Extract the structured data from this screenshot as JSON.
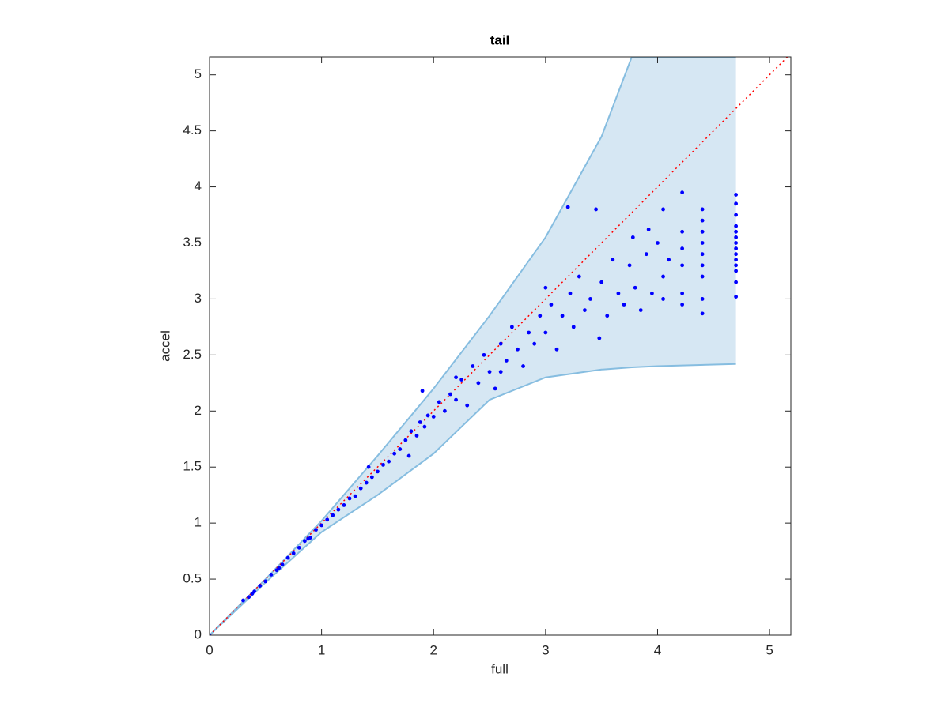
{
  "chart_data": {
    "type": "scatter",
    "title": "tail",
    "xlabel": "full",
    "ylabel": "accel",
    "xlim": [
      0,
      5.19
    ],
    "ylim": [
      0,
      5.16
    ],
    "xticks": [
      0,
      1,
      2,
      3,
      4,
      5
    ],
    "yticks": [
      0,
      0.5,
      1,
      1.5,
      2,
      2.5,
      3,
      3.5,
      4,
      4.5,
      5
    ],
    "band": {
      "x": [
        0,
        0.5,
        1,
        1.5,
        2,
        2.5,
        3,
        3.5,
        3.77,
        4,
        4.7
      ],
      "upper": [
        0,
        0.5,
        1.02,
        1.6,
        2.2,
        2.85,
        3.55,
        4.45,
        5.16,
        5.16,
        5.16
      ],
      "lower": [
        0,
        0.47,
        0.92,
        1.25,
        1.62,
        2.1,
        2.3,
        2.37,
        2.39,
        2.4,
        2.42
      ],
      "color": "#d6e7f3",
      "edge_color": "#86bde0"
    },
    "reference_line": {
      "x": [
        0,
        5.19
      ],
      "y": [
        0,
        5.19
      ],
      "color": "#ff0000"
    },
    "points": {
      "color": "#0000ff",
      "x": [
        0,
        0.3,
        0.35,
        0.38,
        0.4,
        0.45,
        0.5,
        0.55,
        0.6,
        0.62,
        0.65,
        0.7,
        0.75,
        0.8,
        0.85,
        0.88,
        0.9,
        0.95,
        1.0,
        1.05,
        1.1,
        1.15,
        1.2,
        1.25,
        1.3,
        1.35,
        1.4,
        1.42,
        1.45,
        1.5,
        1.55,
        1.6,
        1.65,
        1.7,
        1.75,
        1.78,
        1.8,
        1.85,
        1.88,
        1.9,
        1.92,
        1.95,
        2.0,
        2.05,
        2.1,
        2.15,
        2.2,
        2.2,
        2.25,
        2.3,
        2.35,
        2.4,
        2.45,
        2.5,
        2.55,
        2.6,
        2.6,
        2.65,
        2.7,
        2.75,
        2.8,
        2.85,
        2.9,
        2.95,
        3.0,
        3.0,
        3.05,
        3.1,
        3.15,
        3.2,
        3.22,
        3.25,
        3.3,
        3.35,
        3.4,
        3.45,
        3.48,
        3.5,
        3.55,
        3.6,
        3.65,
        3.7,
        3.75,
        3.78,
        3.8,
        3.85,
        3.9,
        3.92,
        3.95,
        4.0,
        4.05,
        4.05,
        4.05,
        4.1,
        4.22,
        4.22,
        4.22,
        4.22,
        4.22,
        4.22,
        4.4,
        4.4,
        4.4,
        4.4,
        4.4,
        4.4,
        4.4,
        4.4,
        4.4,
        4.7,
        4.7,
        4.7,
        4.7,
        4.7,
        4.7,
        4.7,
        4.7,
        4.7,
        4.7,
        4.7,
        4.7,
        4.7,
        4.7
      ],
      "y": [
        0,
        0.31,
        0.34,
        0.37,
        0.39,
        0.44,
        0.48,
        0.54,
        0.58,
        0.6,
        0.63,
        0.69,
        0.73,
        0.78,
        0.84,
        0.86,
        0.87,
        0.94,
        0.98,
        1.03,
        1.07,
        1.12,
        1.16,
        1.22,
        1.24,
        1.31,
        1.36,
        1.5,
        1.41,
        1.46,
        1.52,
        1.55,
        1.62,
        1.66,
        1.74,
        1.6,
        1.82,
        1.78,
        1.9,
        2.18,
        1.86,
        1.96,
        1.95,
        2.08,
        2.0,
        2.15,
        2.1,
        2.3,
        2.28,
        2.05,
        2.4,
        2.25,
        2.5,
        2.35,
        2.2,
        2.6,
        2.35,
        2.45,
        2.75,
        2.55,
        2.4,
        2.7,
        2.6,
        2.85,
        2.7,
        3.1,
        2.95,
        2.55,
        2.85,
        3.82,
        3.05,
        2.75,
        3.2,
        2.9,
        3.0,
        3.8,
        2.65,
        3.15,
        2.85,
        3.35,
        3.05,
        2.95,
        3.3,
        3.55,
        3.1,
        2.9,
        3.4,
        3.62,
        3.05,
        3.5,
        3.2,
        3.8,
        3.0,
        3.35,
        3.95,
        3.6,
        3.3,
        3.05,
        2.95,
        3.45,
        3.8,
        3.6,
        3.4,
        3.2,
        3.0,
        2.87,
        3.7,
        3.5,
        3.3,
        3.93,
        3.85,
        3.75,
        3.65,
        3.55,
        3.45,
        3.35,
        3.25,
        3.15,
        3.02,
        3.6,
        3.5,
        3.4,
        3.3
      ]
    }
  }
}
